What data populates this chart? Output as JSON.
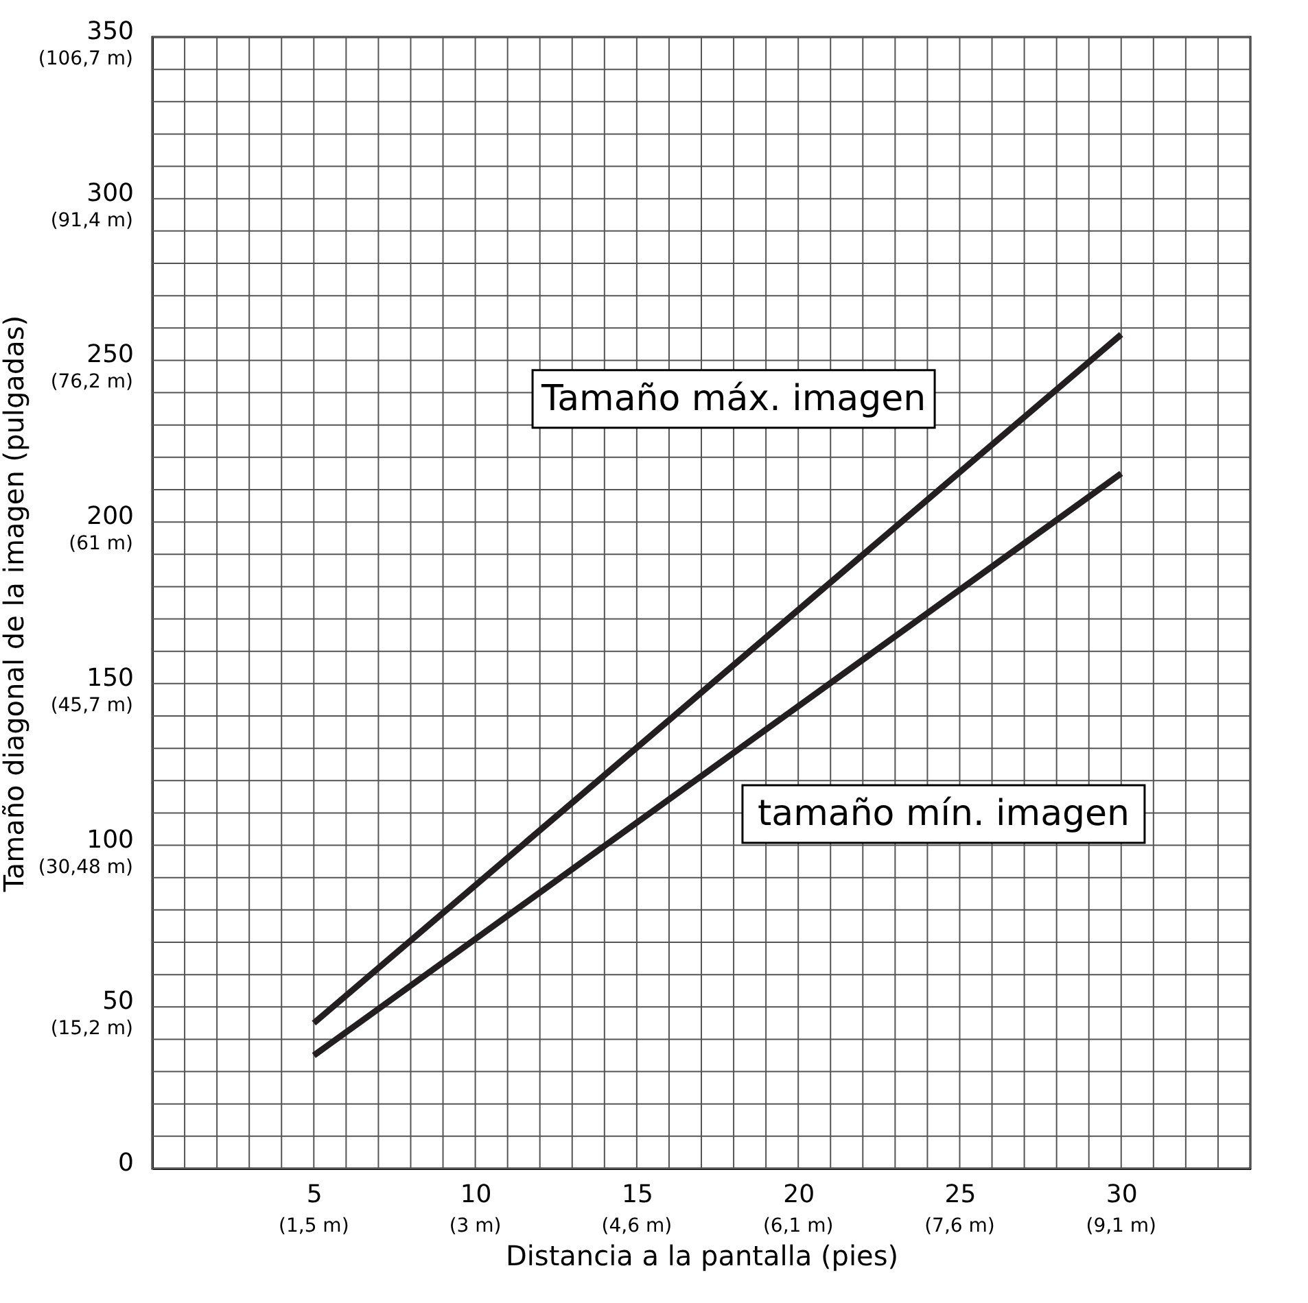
{
  "chart_data": {
    "type": "line",
    "xlabel": "Distancia a la pantalla (pies)",
    "ylabel": "Tamaño diagonal de la imagen (pulgadas)",
    "x": [
      5,
      30
    ],
    "series": [
      {
        "color": "#231f20",
        "values": [
          45,
          258
        ]
      },
      {
        "color": "#231f20",
        "values": [
          35,
          215
        ]
      }
    ],
    "annotations": [
      "Tamaño máx. imagen",
      "tamaño mín. imagen",
      "(1,5 m)",
      "(3 m)",
      "(4,6 m)",
      "(6,1 m)",
      "(7,6 m)",
      "(9,1 m)",
      "(15,2 m)",
      "(30,48 m)",
      "(45,7 m)",
      "(61 m)",
      "(76,2 m)",
      "(91,4 m)",
      "(106,7 m)"
    ],
    "xlim": [
      0,
      34
    ],
    "ylim": [
      0,
      350
    ],
    "xticks": [
      {
        "value": 0,
        "label": null
      },
      {
        "value": 1,
        "label": null
      },
      {
        "value": 2,
        "label": null
      },
      {
        "value": 3,
        "label": null
      },
      {
        "value": 4,
        "label": null
      },
      5,
      {
        "value": 6,
        "label": null
      },
      {
        "value": 7,
        "label": null
      },
      {
        "value": 8,
        "label": null
      },
      {
        "value": 9,
        "label": null
      },
      10,
      {
        "value": 11,
        "label": null
      },
      {
        "value": 12,
        "label": null
      },
      {
        "value": 13,
        "label": null
      },
      {
        "value": 14,
        "label": null
      },
      15,
      {
        "value": 16,
        "label": null
      },
      {
        "value": 17,
        "label": null
      },
      {
        "value": 18,
        "label": null
      },
      {
        "value": 19,
        "label": null
      },
      20,
      {
        "value": 21,
        "label": null
      },
      {
        "value": 22,
        "label": null
      },
      {
        "value": 23,
        "label": null
      },
      {
        "value": 24,
        "label": null
      },
      25,
      {
        "value": 26,
        "label": null
      },
      {
        "value": 27,
        "label": null
      },
      {
        "value": 28,
        "label": null
      },
      {
        "value": 29,
        "label": null
      },
      30,
      {
        "value": 31,
        "label": null
      },
      {
        "value": 32,
        "label": null
      },
      {
        "value": 33,
        "label": null
      },
      {
        "value": 34,
        "label": null
      }
    ],
    "yticks": [
      0,
      {
        "value": 10,
        "label": null
      },
      {
        "value": 20,
        "label": null
      },
      {
        "value": 30,
        "label": null
      },
      {
        "value": 40,
        "label": null
      },
      50,
      {
        "value": 60,
        "label": null
      },
      {
        "value": 70,
        "label": null
      },
      {
        "value": 80,
        "label": null
      },
      {
        "value": 90,
        "label": null
      },
      100,
      {
        "value": 110,
        "label": null
      },
      {
        "value": 120,
        "label": null
      },
      {
        "value": 130,
        "label": null
      },
      {
        "value": 140,
        "label": null
      },
      150,
      {
        "value": 160,
        "label": null
      },
      {
        "value": 170,
        "label": null
      },
      {
        "value": 180,
        "label": null
      },
      {
        "value": 190,
        "label": null
      },
      200,
      {
        "value": 210,
        "label": null
      },
      {
        "value": 220,
        "label": null
      },
      {
        "value": 230,
        "label": null
      },
      {
        "value": 240,
        "label": null
      },
      250,
      {
        "value": 260,
        "label": null
      },
      {
        "value": 270,
        "label": null
      },
      {
        "value": 280,
        "label": null
      },
      {
        "value": 290,
        "label": null
      },
      300,
      {
        "value": 310,
        "label": null
      },
      {
        "value": 320,
        "label": null
      },
      {
        "value": 330,
        "label": null
      },
      {
        "value": 340,
        "label": null
      },
      350
    ],
    "grid": true,
    "legend": false,
    "marker": "none",
    "line_style": "solid"
  }
}
